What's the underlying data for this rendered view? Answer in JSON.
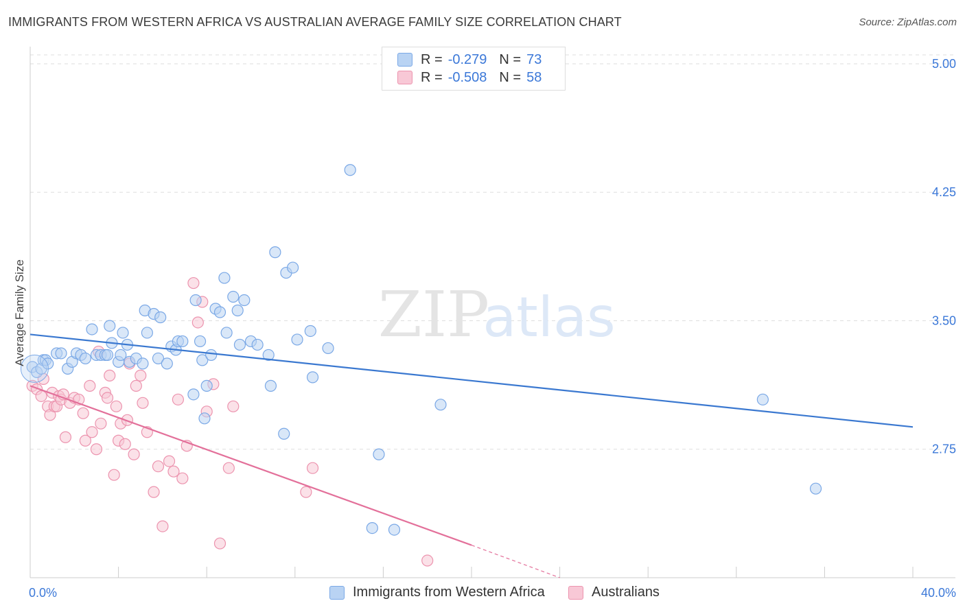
{
  "header": {
    "title": "IMMIGRANTS FROM WESTERN AFRICA VS AUSTRALIAN AVERAGE FAMILY SIZE CORRELATION CHART",
    "source": "Source: ZipAtlas.com"
  },
  "legend": {
    "rows": [
      {
        "r_label": "R =",
        "r_value": "-0.279",
        "n_label": "N =",
        "n_value": "73"
      },
      {
        "r_label": "R =",
        "r_value": "-0.508",
        "n_label": "N =",
        "n_value": "58"
      }
    ],
    "bottom": [
      "Immigrants from Western Africa",
      "Australians"
    ]
  },
  "watermark": {
    "zip": "ZIP",
    "atlas": "atlas"
  },
  "colors": {
    "blue_fill": "#b9d3f3",
    "blue_stroke": "#7aa8e6",
    "blue_line": "#3a78d0",
    "pink_fill": "#f8c8d6",
    "pink_stroke": "#ec93ae",
    "pink_line": "#e3709a",
    "grid": "#dddddd",
    "axis_text": "#3b78d8"
  },
  "chart_data": {
    "type": "scatter",
    "title": "IMMIGRANTS FROM WESTERN AFRICA VS AUSTRALIAN AVERAGE FAMILY SIZE CORRELATION CHART",
    "xlabel": "",
    "ylabel": "Average Family Size",
    "xlim": [
      0,
      40
    ],
    "ylim": [
      2.0,
      5.1
    ],
    "x_tick_labels": [
      "0.0%",
      "40.0%"
    ],
    "y_ticks": [
      2.75,
      3.5,
      4.25,
      5.0
    ],
    "y_tick_labels": [
      "2.75",
      "3.50",
      "4.25",
      "5.00"
    ],
    "grid": true,
    "legend_position": "top-center",
    "series": [
      {
        "name": "Immigrants from Western Africa",
        "color": "#7aa8e6",
        "trend": {
          "x": [
            0,
            40
          ],
          "y": [
            3.42,
            2.88
          ]
        },
        "points": [
          [
            0.1,
            3.23
          ],
          [
            0.3,
            3.2
          ],
          [
            0.5,
            3.22
          ],
          [
            0.6,
            3.27
          ],
          [
            0.7,
            3.27
          ],
          [
            0.8,
            3.25
          ],
          [
            1.2,
            3.31
          ],
          [
            1.4,
            3.31
          ],
          [
            1.7,
            3.22
          ],
          [
            1.9,
            3.26
          ],
          [
            2.1,
            3.31
          ],
          [
            2.3,
            3.3
          ],
          [
            2.5,
            3.28
          ],
          [
            2.8,
            3.45
          ],
          [
            3.0,
            3.3
          ],
          [
            3.2,
            3.3
          ],
          [
            3.4,
            3.3
          ],
          [
            3.5,
            3.3
          ],
          [
            3.6,
            3.47
          ],
          [
            3.7,
            3.37
          ],
          [
            4.0,
            3.26
          ],
          [
            4.1,
            3.3
          ],
          [
            4.2,
            3.43
          ],
          [
            4.4,
            3.36
          ],
          [
            4.5,
            3.26
          ],
          [
            4.8,
            3.28
          ],
          [
            5.1,
            3.25
          ],
          [
            5.2,
            3.56
          ],
          [
            5.3,
            3.43
          ],
          [
            5.6,
            3.54
          ],
          [
            5.8,
            3.28
          ],
          [
            5.9,
            3.52
          ],
          [
            6.2,
            3.25
          ],
          [
            6.4,
            3.35
          ],
          [
            6.6,
            3.33
          ],
          [
            6.7,
            3.38
          ],
          [
            6.9,
            3.38
          ],
          [
            7.4,
            3.07
          ],
          [
            7.5,
            3.62
          ],
          [
            7.7,
            3.38
          ],
          [
            7.8,
            3.27
          ],
          [
            7.9,
            2.93
          ],
          [
            8.0,
            3.12
          ],
          [
            8.2,
            3.3
          ],
          [
            8.4,
            3.57
          ],
          [
            8.6,
            3.55
          ],
          [
            8.8,
            3.75
          ],
          [
            8.9,
            3.43
          ],
          [
            9.2,
            3.64
          ],
          [
            9.4,
            3.56
          ],
          [
            9.5,
            3.36
          ],
          [
            9.7,
            3.62
          ],
          [
            10.0,
            3.38
          ],
          [
            10.3,
            3.36
          ],
          [
            10.8,
            3.3
          ],
          [
            10.9,
            3.12
          ],
          [
            11.1,
            3.9
          ],
          [
            11.5,
            2.84
          ],
          [
            11.6,
            3.78
          ],
          [
            11.9,
            3.81
          ],
          [
            12.1,
            3.39
          ],
          [
            12.7,
            3.44
          ],
          [
            12.8,
            3.17
          ],
          [
            13.5,
            3.34
          ],
          [
            14.5,
            4.38
          ],
          [
            15.5,
            2.29
          ],
          [
            15.8,
            2.72
          ],
          [
            16.5,
            2.28
          ],
          [
            18.6,
            3.01
          ],
          [
            33.2,
            3.04
          ],
          [
            35.6,
            2.52
          ]
        ]
      },
      {
        "name": "Australians",
        "color": "#ec93ae",
        "trend": {
          "x": [
            0,
            20
          ],
          "y": [
            3.12,
            2.19
          ]
        },
        "trend_dashed": {
          "x": [
            20,
            24
          ],
          "y": [
            2.19,
            2.0
          ]
        },
        "points": [
          [
            0.1,
            3.12
          ],
          [
            0.3,
            3.1
          ],
          [
            0.5,
            3.06
          ],
          [
            0.6,
            3.16
          ],
          [
            0.8,
            3.0
          ],
          [
            0.9,
            2.95
          ],
          [
            1.0,
            3.08
          ],
          [
            1.1,
            3.0
          ],
          [
            1.2,
            3.0
          ],
          [
            1.3,
            3.06
          ],
          [
            1.4,
            3.04
          ],
          [
            1.5,
            3.07
          ],
          [
            1.6,
            2.82
          ],
          [
            1.8,
            3.02
          ],
          [
            2.0,
            3.05
          ],
          [
            2.2,
            3.04
          ],
          [
            2.4,
            2.96
          ],
          [
            2.5,
            2.8
          ],
          [
            2.7,
            3.12
          ],
          [
            2.8,
            2.85
          ],
          [
            3.0,
            2.75
          ],
          [
            3.1,
            3.32
          ],
          [
            3.2,
            2.9
          ],
          [
            3.4,
            3.08
          ],
          [
            3.5,
            3.05
          ],
          [
            3.6,
            3.18
          ],
          [
            3.8,
            2.6
          ],
          [
            3.9,
            3.0
          ],
          [
            4.0,
            2.8
          ],
          [
            4.1,
            2.9
          ],
          [
            4.3,
            2.78
          ],
          [
            4.4,
            2.92
          ],
          [
            4.5,
            3.25
          ],
          [
            4.7,
            2.72
          ],
          [
            4.8,
            3.12
          ],
          [
            5.0,
            3.18
          ],
          [
            5.1,
            3.02
          ],
          [
            5.3,
            2.85
          ],
          [
            5.6,
            2.5
          ],
          [
            5.8,
            2.65
          ],
          [
            6.0,
            2.3
          ],
          [
            6.3,
            2.68
          ],
          [
            6.5,
            2.62
          ],
          [
            6.7,
            3.04
          ],
          [
            6.9,
            2.58
          ],
          [
            7.1,
            2.77
          ],
          [
            7.4,
            3.72
          ],
          [
            7.6,
            3.49
          ],
          [
            7.8,
            3.61
          ],
          [
            8.0,
            2.97
          ],
          [
            8.3,
            3.13
          ],
          [
            8.6,
            2.2
          ],
          [
            9.0,
            2.64
          ],
          [
            9.2,
            3.0
          ],
          [
            12.5,
            2.5
          ],
          [
            12.8,
            2.64
          ],
          [
            18.0,
            2.1
          ]
        ]
      }
    ]
  }
}
